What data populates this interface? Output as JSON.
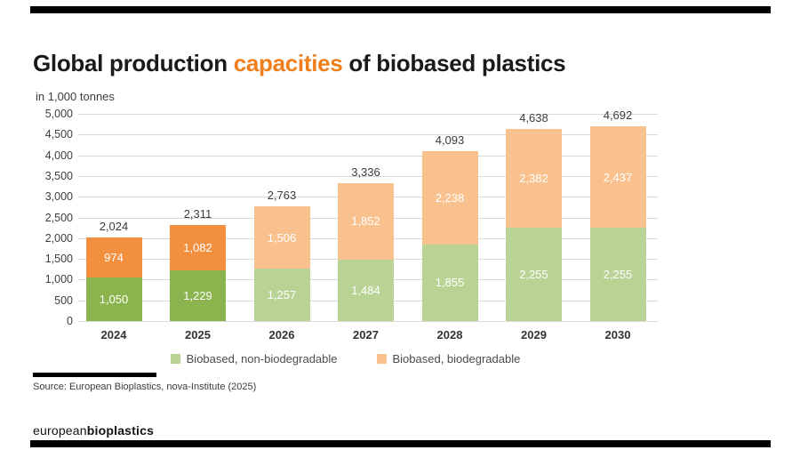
{
  "header": {
    "title_prefix": "Global production ",
    "title_highlight": "capacities",
    "title_suffix": " of biobased plastics",
    "subtitle": "in 1,000 tonnes"
  },
  "chart_data": {
    "type": "bar",
    "stacked": true,
    "title": "Global production capacities of biobased plastics",
    "ylabel": "in 1,000 tonnes",
    "xlabel": "",
    "categories": [
      "2024",
      "2025",
      "2026",
      "2027",
      "2028",
      "2029",
      "2030"
    ],
    "series": [
      {
        "name": "Biobased, non-biodegradable",
        "values": [
          1050,
          1229,
          1257,
          1484,
          1855,
          2255,
          2255
        ],
        "color": "#b9d395",
        "color_saturated": "#8cb44e"
      },
      {
        "name": "Biobased, biodegradable",
        "values": [
          974,
          1082,
          1506,
          1852,
          2238,
          2382,
          2437
        ],
        "color": "#f8c18e",
        "color_saturated": "#f29040"
      }
    ],
    "saturated_bar_count": 2,
    "totals": [
      2024,
      2311,
      2763,
      3336,
      4093,
      4638,
      4692
    ],
    "ylim": [
      0,
      5000
    ],
    "ytick_step": 500,
    "yticks": [
      "5,000",
      "4,500",
      "4,000",
      "3,500",
      "3,000",
      "2,500",
      "2,000",
      "1,500",
      "1,000",
      "500",
      "0"
    ],
    "grid": true,
    "legend_position": "bottom",
    "value_label_color": "#ffffff"
  },
  "footer": {
    "source": "Source: European Bioplastics, nova-Institute (2025)",
    "logo_regular": "european",
    "logo_bold": "bioplastics"
  },
  "colors": {
    "title_accent": "#ee7f1c",
    "gridline": "#d9d9d9",
    "rule_black": "#000000",
    "text_dark": "#1a1a1a",
    "text_gray": "#3c3c3c"
  }
}
